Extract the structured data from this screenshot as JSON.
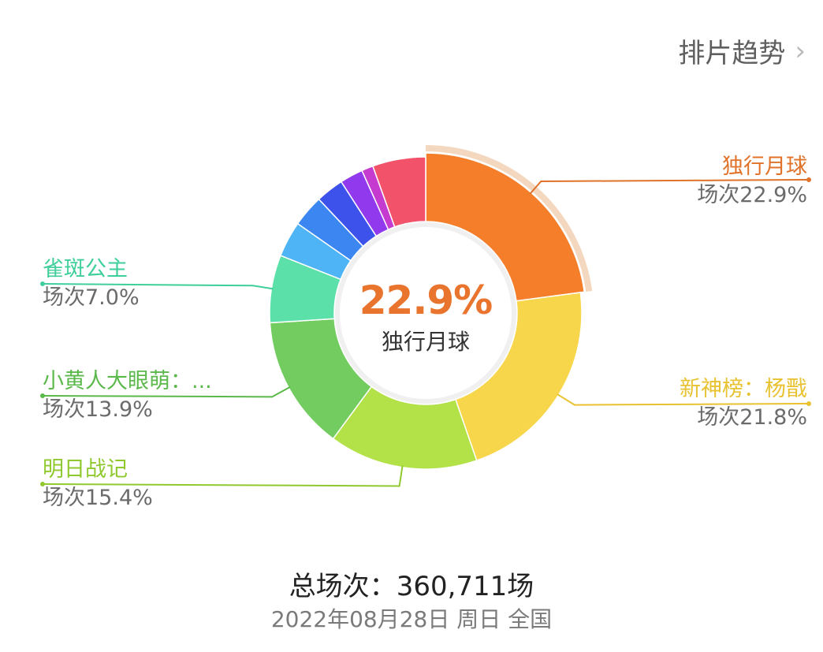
{
  "header": {
    "trend_link": "排片趋势",
    "chevron_icon": "chevron-right-icon"
  },
  "center": {
    "value": "22.9%",
    "name": "独行月球"
  },
  "footer": {
    "total_label": "总场次：",
    "total_value": "360,711场",
    "date": "2022年08月28日 周日 全国"
  },
  "colors": {
    "accent": "#f07c2c",
    "highlight_ring": "#f4d7bf"
  },
  "chart_data": {
    "type": "pie",
    "style": "donut",
    "highlighted": "独行月球",
    "slices": [
      {
        "name": "独行月球",
        "value": 22.9,
        "label": "场次22.9%",
        "color": "#f57e2b",
        "text_color": "#e0722a"
      },
      {
        "name": "新神榜：杨戬",
        "value": 21.8,
        "label": "场次21.8%",
        "color": "#f7d64c",
        "text_color": "#e8c230"
      },
      {
        "name": "明日战记",
        "value": 15.4,
        "label": "场次15.4%",
        "color": "#b2e248",
        "text_color": "#8fc92e"
      },
      {
        "name": "小黄人大眼萌：...",
        "value": 13.9,
        "label": "场次13.9%",
        "color": "#72cc5f",
        "text_color": "#5bb84a"
      },
      {
        "name": "雀斑公主",
        "value": 7.0,
        "label": "场次7.0%",
        "color": "#5be0a9",
        "text_color": "#3fcf9a"
      },
      {
        "name": "",
        "value": 3.7,
        "label": "",
        "color": "#4fb4f5"
      },
      {
        "name": "",
        "value": 3.3,
        "label": "",
        "color": "#3b86f1"
      },
      {
        "name": "",
        "value": 2.9,
        "label": "",
        "color": "#3d52ea"
      },
      {
        "name": "",
        "value": 2.4,
        "label": "",
        "color": "#9139ec"
      },
      {
        "name": "",
        "value": 1.2,
        "label": "",
        "color": "#c63bcf"
      },
      {
        "name": "",
        "value": 5.5,
        "label": "",
        "color": "#f2526a"
      }
    ]
  }
}
